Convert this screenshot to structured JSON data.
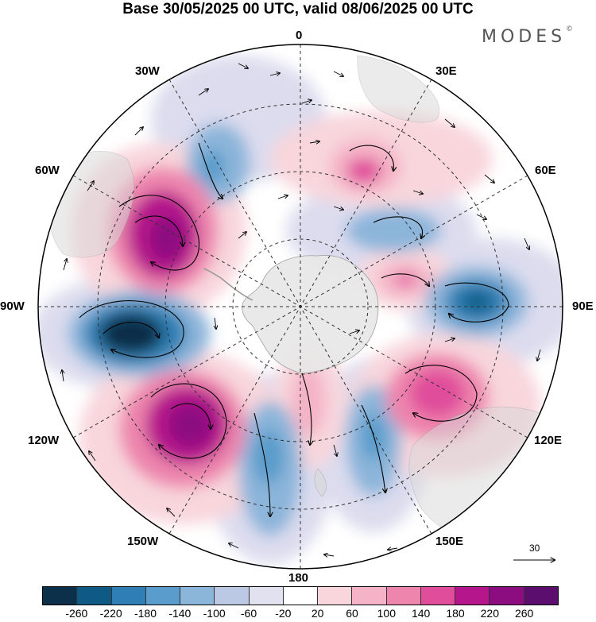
{
  "title": "Base 30/05/2025 00 UTC, valid 08/06/2025 00 UTC",
  "logo": "MODES",
  "logo_mark": "©",
  "longitude_labels": {
    "top": "0",
    "top_right": "30E",
    "right_upper": "60E",
    "right": "90E",
    "right_lower": "120E",
    "bottom_right": "150E",
    "bottom": "180",
    "bottom_left": "150W",
    "left_lower": "120W",
    "left": "90W",
    "left_upper": "60W",
    "top_left": "30W"
  },
  "reference_vector_label": "30",
  "colorbar": {
    "colors": [
      "#0c2f4a",
      "#0f5a84",
      "#2f7fb4",
      "#5a9ccb",
      "#8cb5da",
      "#bcc9e4",
      "#e1e1ef",
      "#ffffff",
      "#f8d6dc",
      "#f4b3c6",
      "#ed85ad",
      "#e04e9b",
      "#b5168b",
      "#8c0d80",
      "#5b0e6e"
    ],
    "ticks": [
      "-260",
      "-220",
      "-180",
      "-140",
      "-100",
      "-60",
      "-20",
      "20",
      "60",
      "100",
      "140",
      "180",
      "220",
      "260"
    ]
  }
}
